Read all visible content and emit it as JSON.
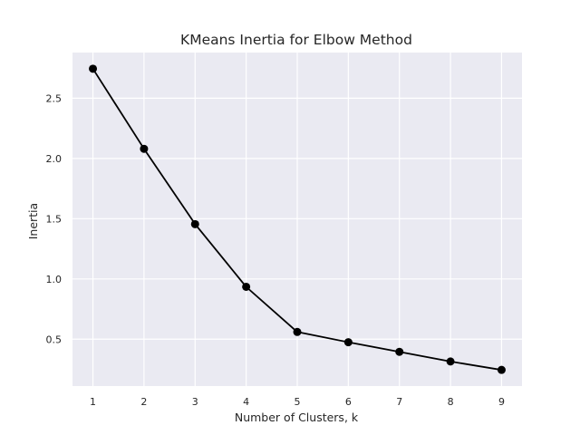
{
  "chart_data": {
    "type": "line",
    "title": "KMeans Inertia for Elbow Method",
    "xlabel": "Number of Clusters, k",
    "ylabel": "Inertia",
    "x": [
      1,
      2,
      3,
      4,
      5,
      6,
      7,
      8,
      9
    ],
    "series": [
      {
        "values": [
          2.745,
          2.08,
          1.455,
          0.935,
          0.56,
          0.475,
          0.395,
          0.315,
          0.245
        ]
      }
    ],
    "xticks": [
      "1",
      "2",
      "3",
      "4",
      "5",
      "6",
      "7",
      "8",
      "9"
    ],
    "yticks": [
      "0.5",
      "1.0",
      "1.5",
      "2.0",
      "2.5"
    ],
    "xlim": [
      0.6,
      9.4
    ],
    "ylim": [
      0.111,
      2.879
    ],
    "grid": true,
    "style": "seaborn-darkgrid",
    "colors": {
      "line": "#000000",
      "marker": "#000000",
      "plot_bg": "#EAEAF2",
      "grid": "#FFFFFF",
      "text": "#262626"
    }
  }
}
